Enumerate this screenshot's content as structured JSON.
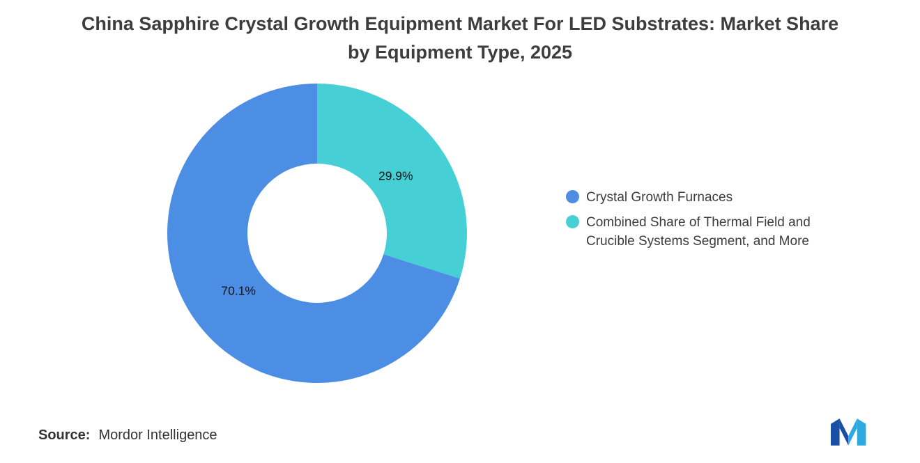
{
  "title": "China Sapphire Crystal Growth Equipment Market For LED Substrates: Market Share by Equipment Type, 2025",
  "source": {
    "label": "Source:",
    "value": "Mordor Intelligence"
  },
  "logo": {
    "name": "mordor-intelligence-logo",
    "dark_color": "#1B4FA5",
    "light_color": "#2EAAE1"
  },
  "chart_data": {
    "type": "pie",
    "subtype": "donut",
    "title": "China Sapphire Crystal Growth Equipment Market For LED Substrates: Market Share by Equipment Type, 2025",
    "categories": [
      "Crystal Growth Furnaces",
      "Combined Share of Thermal Field and Crucible Systems Segment, and More"
    ],
    "values": [
      70.1,
      29.9
    ],
    "colors": [
      "#4B8EE4",
      "#47CFD6"
    ],
    "unit": "%",
    "legend_position": "right",
    "start_position": "top",
    "inner_radius_ratio": 0.465,
    "label_color": "#141414",
    "background": "#ffffff"
  }
}
